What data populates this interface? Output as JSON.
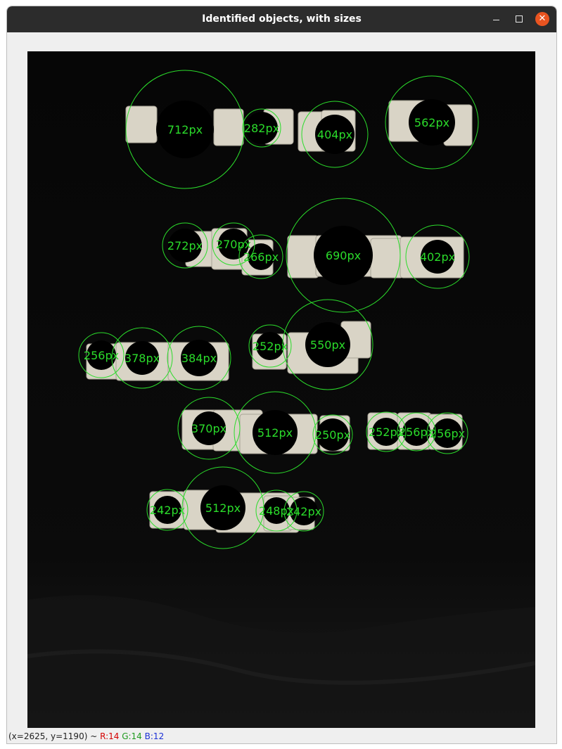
{
  "window": {
    "title": "Identified objects, with sizes",
    "controls": {
      "minimize": "minimize-icon",
      "maximize": "maximize-icon",
      "close": "close-icon"
    }
  },
  "image": {
    "objects": [
      {
        "label": "712px"
      },
      {
        "label": "282px"
      },
      {
        "label": "404px"
      },
      {
        "label": "562px"
      },
      {
        "label": "272px"
      },
      {
        "label": "270px"
      },
      {
        "label": "266px"
      },
      {
        "label": "690px"
      },
      {
        "label": "402px"
      },
      {
        "label": "256px"
      },
      {
        "label": "378px"
      },
      {
        "label": "384px"
      },
      {
        "label": "252px"
      },
      {
        "label": "550px"
      },
      {
        "label": "370px"
      },
      {
        "label": "512px"
      },
      {
        "label": "250px"
      },
      {
        "label": "252px"
      },
      {
        "label": "256px"
      },
      {
        "label": "256px"
      },
      {
        "label": "242px"
      },
      {
        "label": "512px"
      },
      {
        "label": "248px"
      },
      {
        "label": "242px"
      }
    ]
  },
  "status": {
    "coords": "(x=2625, y=1190) ~",
    "r": "R:14",
    "g": "G:14",
    "b": "B:12"
  },
  "colors": {
    "circle": "#2bdc2b",
    "label": "#2bdc2b",
    "titlebar": "#2c2c2c",
    "close": "#e95420"
  }
}
